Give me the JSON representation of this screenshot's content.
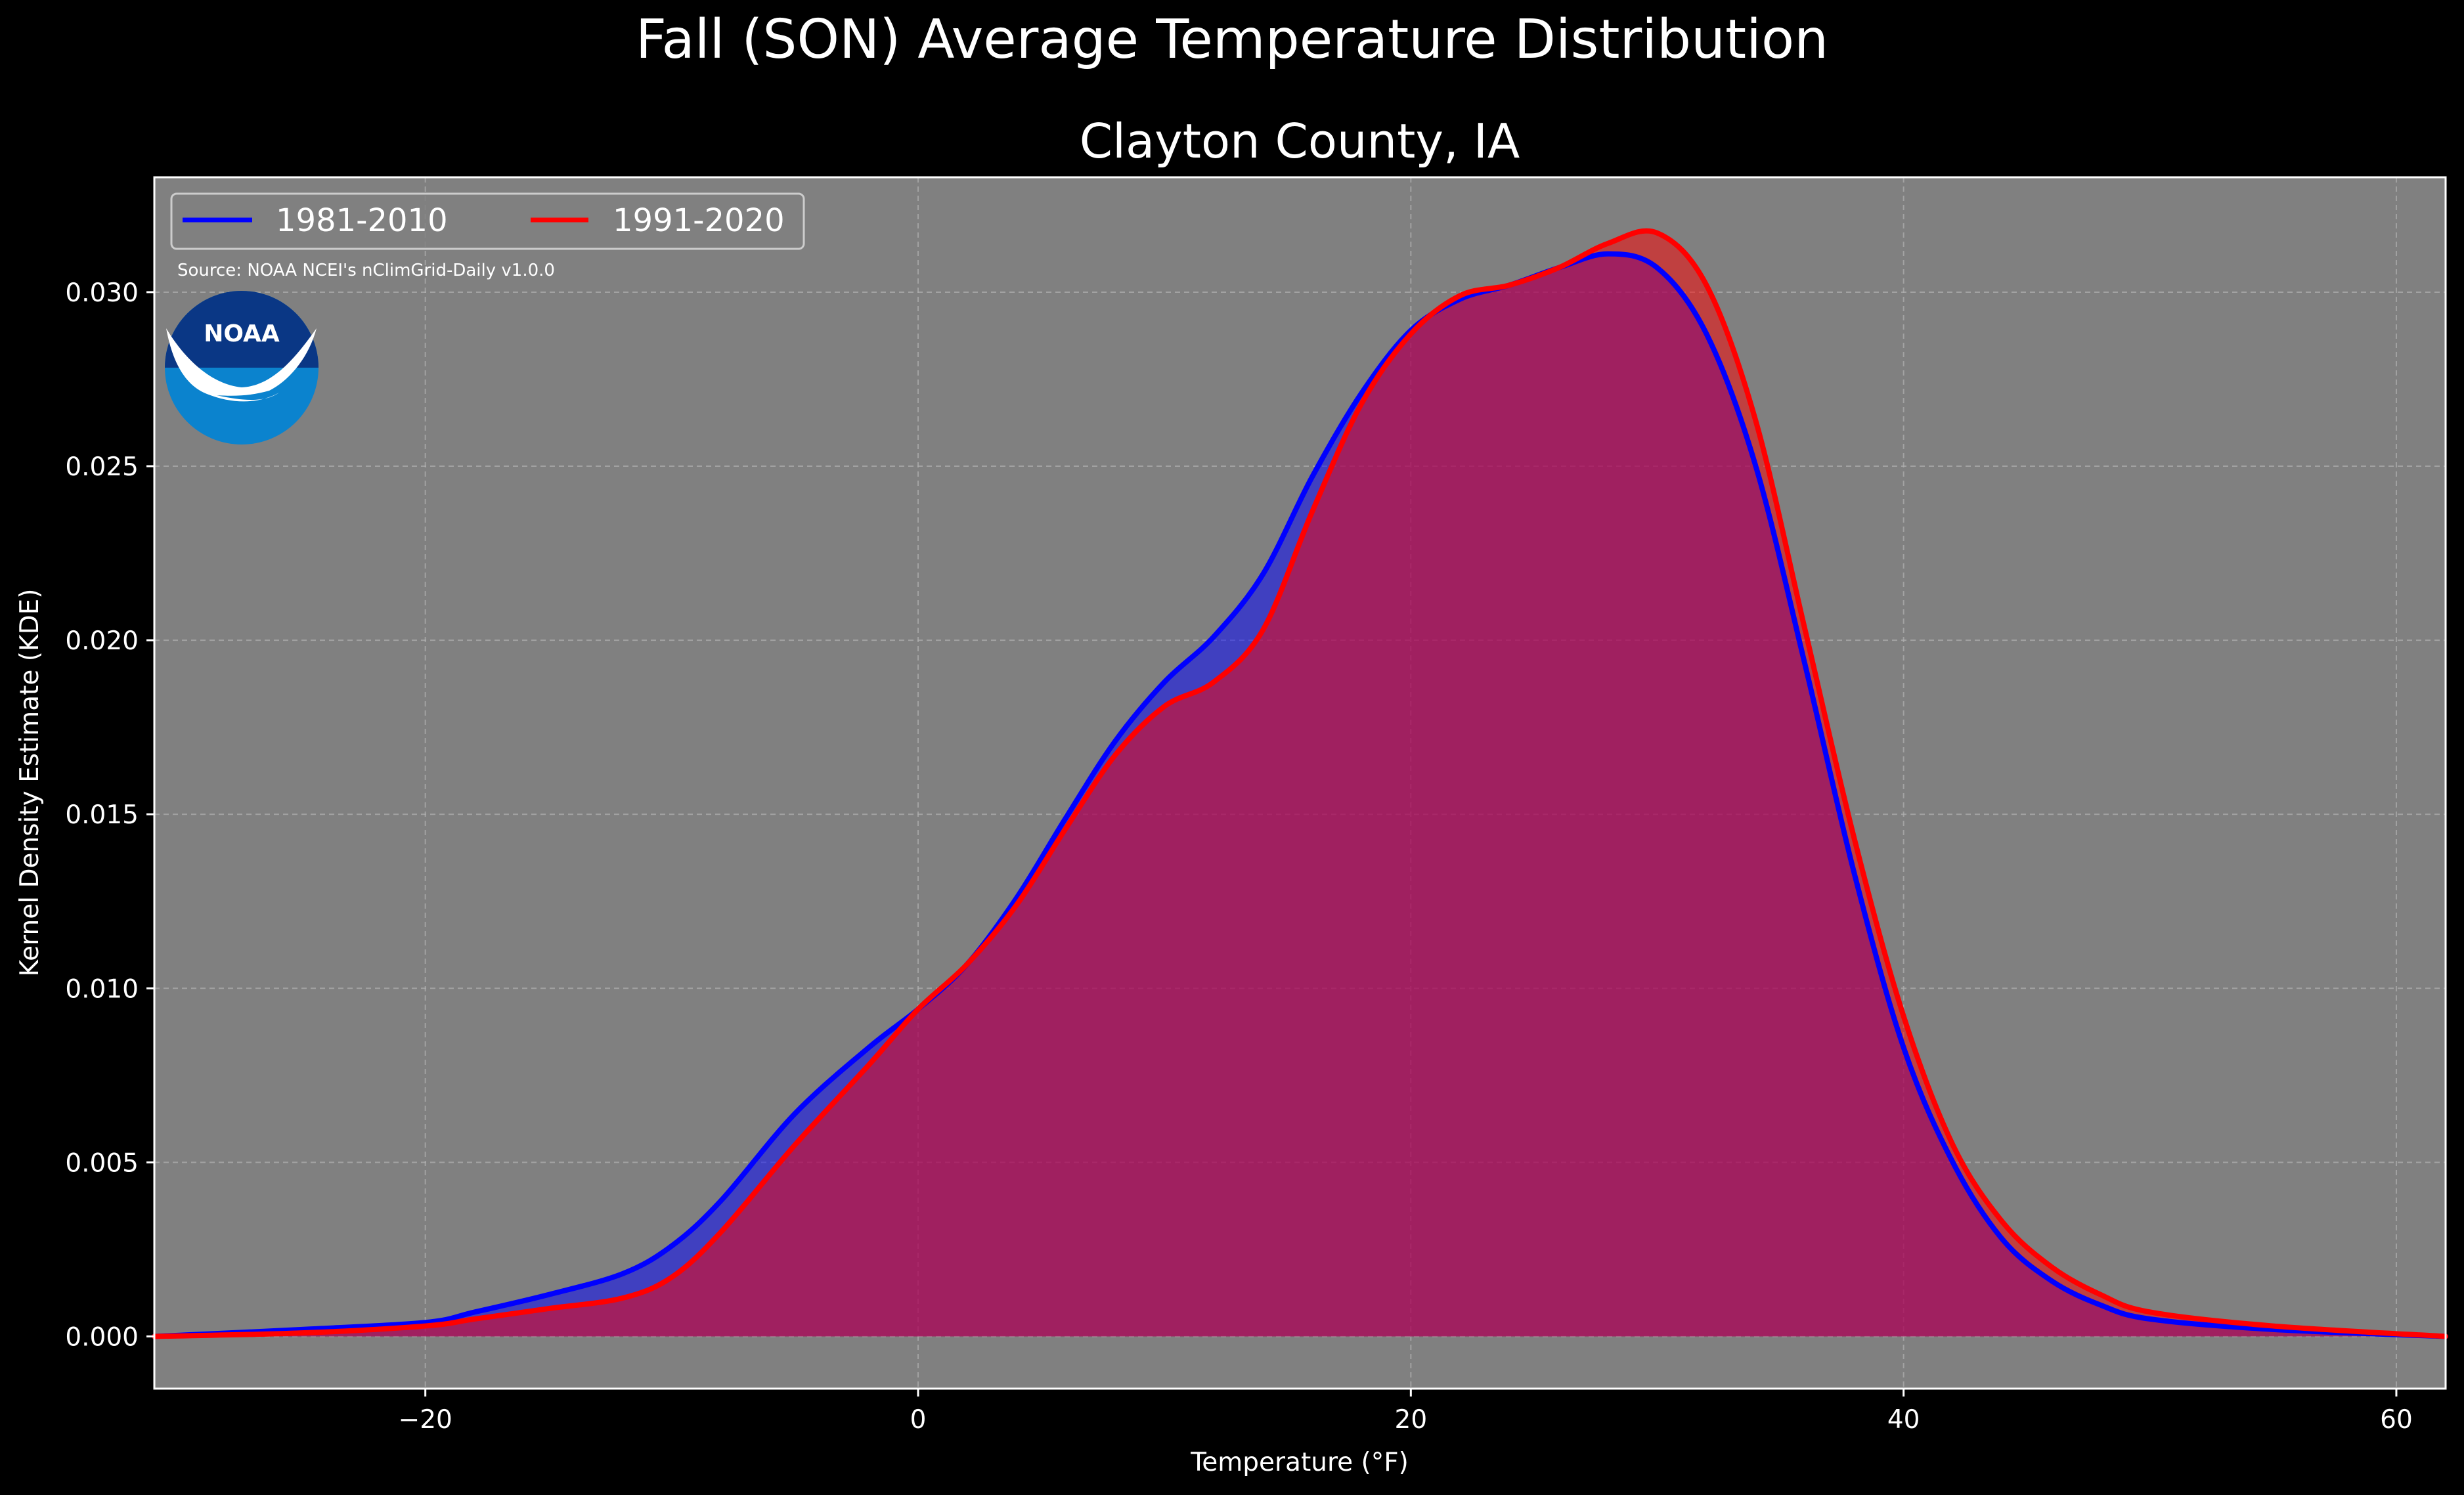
{
  "chart_data": {
    "type": "area",
    "title": "Fall (SON) Average Temperature Distribution",
    "subtitle": "Clayton County, IA",
    "xlabel": "Temperature ($^\\circ$F)",
    "xlabel_display": "Temperature (°F)",
    "ylabel": "Kernel Density Estimate (KDE)",
    "xlim": [
      -31,
      62
    ],
    "ylim": [
      -0.0015,
      0.0333
    ],
    "xticks": [
      -20,
      0,
      20,
      40,
      60
    ],
    "xtick_labels": [
      "−20",
      "0",
      "20",
      "40",
      "60"
    ],
    "yticks": [
      0.0,
      0.005,
      0.01,
      0.015,
      0.02,
      0.025,
      0.03
    ],
    "ytick_labels": [
      "0.000",
      "0.005",
      "0.010",
      "0.015",
      "0.020",
      "0.025",
      "0.030"
    ],
    "grid": true,
    "legend_position": "top-left",
    "source": "Source: NOAA NCEI's nClimGrid-Daily v1.0.0",
    "logo_text": "NOAA",
    "series": [
      {
        "name": "1981-2010",
        "color": "#0000ff",
        "fill": "#0000ff",
        "x": [
          -31,
          -25,
          -20,
          -18,
          -15,
          -12,
          -10,
          -8,
          -5,
          -2,
          0,
          2,
          4,
          6,
          8,
          10,
          12,
          14,
          16,
          18,
          20,
          22,
          24,
          26,
          28,
          30,
          32,
          34,
          36,
          38,
          40,
          42,
          44,
          46,
          48,
          50,
          55,
          62
        ],
        "y": [
          0.0,
          0.0002,
          0.0004,
          0.0007,
          0.0012,
          0.0018,
          0.0026,
          0.0039,
          0.0064,
          0.0083,
          0.0094,
          0.0107,
          0.0126,
          0.0149,
          0.0171,
          0.0188,
          0.0201,
          0.0219,
          0.0247,
          0.0271,
          0.0289,
          0.0298,
          0.0302,
          0.0307,
          0.0311,
          0.0307,
          0.0288,
          0.025,
          0.0193,
          0.0133,
          0.0083,
          0.005,
          0.0028,
          0.0016,
          0.0009,
          0.0005,
          0.0002,
          0.0
        ]
      },
      {
        "name": "1991-2020",
        "color": "#ff0000",
        "fill": "#ff0000",
        "x": [
          -31,
          -25,
          -20,
          -18,
          -15,
          -12,
          -10,
          -8,
          -5,
          -2,
          0,
          2,
          4,
          6,
          8,
          10,
          12,
          14,
          16,
          18,
          20,
          22,
          24,
          26,
          28,
          30,
          32,
          34,
          36,
          38,
          40,
          42,
          44,
          46,
          48,
          50,
          55,
          62
        ],
        "y": [
          0.0,
          0.0001,
          0.0003,
          0.0005,
          0.0008,
          0.0011,
          0.0017,
          0.003,
          0.0055,
          0.0078,
          0.0094,
          0.0107,
          0.0124,
          0.0146,
          0.0167,
          0.0181,
          0.0188,
          0.0203,
          0.0237,
          0.0268,
          0.0288,
          0.0299,
          0.0302,
          0.0307,
          0.0314,
          0.0317,
          0.0302,
          0.0263,
          0.0203,
          0.0143,
          0.0092,
          0.0055,
          0.0033,
          0.002,
          0.0012,
          0.0007,
          0.0003,
          0.0
        ]
      }
    ]
  }
}
